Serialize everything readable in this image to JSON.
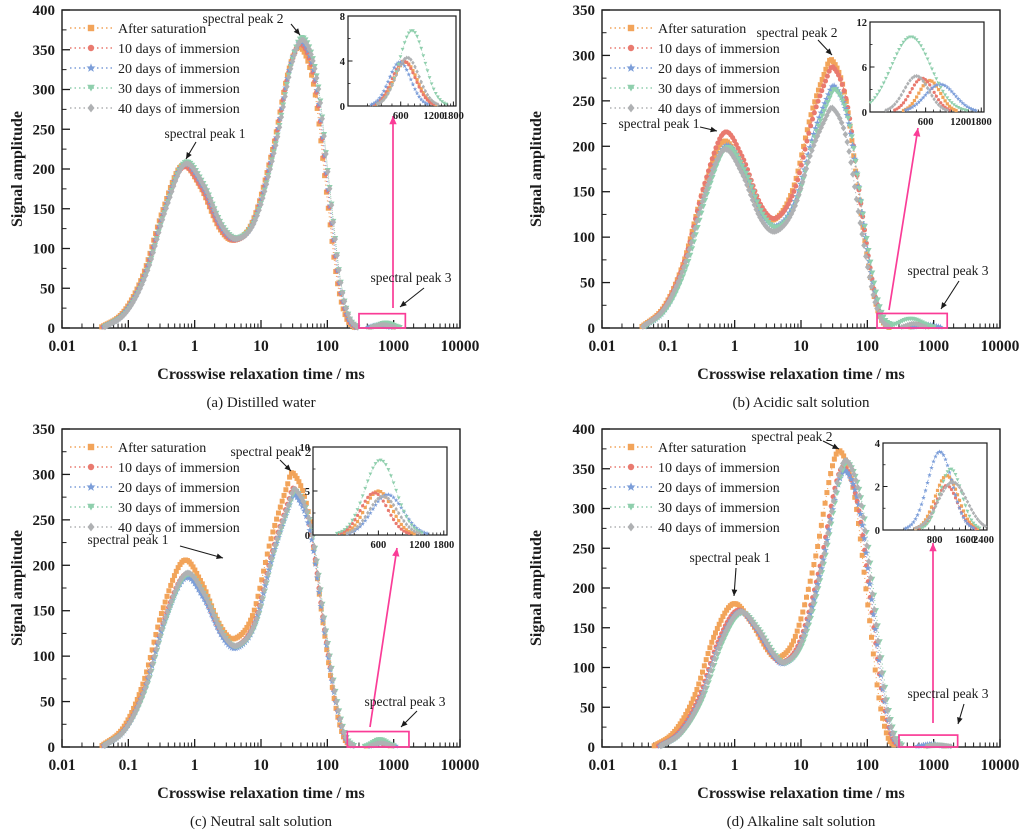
{
  "figure": {
    "background": "#ffffff",
    "axis_color": "#1b1b1b",
    "highlight_color": "#FA3C97",
    "series_colors": {
      "after_saturation": "#F2A45A",
      "d10": "#E97A6F",
      "d20": "#7C9ED9",
      "d30": "#8FCFAD",
      "d40": "#AFB1B3"
    }
  },
  "chart_data": [
    {
      "id": "a",
      "type": "scatter",
      "xscale": "log",
      "caption": "(a) Distilled water",
      "xlabel": "Crosswise relaxation time / ms",
      "ylabel": "Signal amplitude",
      "xlim": [
        0.01,
        10000
      ],
      "xtick_labels": [
        "0.01",
        "0.1",
        "1",
        "10",
        "100",
        "1000",
        "10000"
      ],
      "ylim": [
        0,
        400
      ],
      "ytick_step": 50,
      "base": {
        "p1_t": 0.68,
        "p1_amp": 206,
        "p2_t": 42,
        "p2_amp": 360,
        "anchors": [
          [
            0.04,
            0
          ],
          [
            0.09,
            20
          ],
          [
            0.18,
            68
          ],
          [
            0.35,
            148
          ],
          [
            0.68,
            206
          ],
          [
            1.3,
            180
          ],
          [
            2.5,
            128
          ],
          [
            4.2,
            112
          ],
          [
            8,
            136
          ],
          [
            16,
            228
          ],
          [
            28,
            330
          ],
          [
            42,
            360
          ],
          [
            68,
            308
          ],
          [
            105,
            172
          ],
          [
            150,
            62
          ],
          [
            205,
            14
          ],
          [
            280,
            0
          ]
        ]
      },
      "series": [
        {
          "name": "After saturation",
          "color": "#F2A45A",
          "marker": "square",
          "t_mult": 0.93,
          "p1_amp": 204,
          "p2_amp": 353,
          "peak3": {
            "amp": 3.9,
            "t": 660,
            "w": 0.15
          }
        },
        {
          "name": "10 days of immersion",
          "color": "#E97A6F",
          "marker": "circle",
          "t_mult": 0.97,
          "p1_amp": 202,
          "p2_amp": 357,
          "peak3": {
            "amp": 4.0,
            "t": 640,
            "w": 0.15
          }
        },
        {
          "name": "20 days of immersion",
          "color": "#7C9ED9",
          "marker": "star",
          "t_mult": 1.0,
          "p1_amp": 206,
          "p2_amp": 360,
          "peak3": {
            "amp": 3.9,
            "t": 590,
            "w": 0.14
          }
        },
        {
          "name": "30 days of immersion",
          "color": "#8FCFAD",
          "marker": "tridown",
          "t_mult": 1.04,
          "p1_amp": 208,
          "p2_amp": 365,
          "peak3": {
            "amp": 6.7,
            "t": 760,
            "w": 0.16
          }
        },
        {
          "name": "40 days of immersion",
          "color": "#AFB1B3",
          "marker": "diamond",
          "t_mult": 1.04,
          "p1_amp": 206,
          "p2_amp": 362,
          "peak3": {
            "amp": 4.3,
            "t": 690,
            "w": 0.15
          }
        }
      ],
      "inset": {
        "ylim": [
          0,
          8
        ],
        "yticks": [
          0,
          4,
          8
        ],
        "yminors": [
          2,
          6
        ],
        "xticks": [
          600,
          1200,
          1800
        ],
        "xminors": [
          300,
          400,
          500,
          700,
          800,
          900,
          1000,
          1100,
          1300,
          1400,
          1500,
          1600,
          1700
        ],
        "xlim": [
          200,
          1900
        ],
        "box": {
          "l": 348,
          "t": 16,
          "r": 456,
          "b": 106
        }
      },
      "highlight": {
        "t1": 300,
        "t2": 1500,
        "amp": 18
      },
      "pink_arrow": {
        "x1": 393,
        "y1": 308,
        "x2": 393,
        "y2": 116
      },
      "annotations": [
        {
          "text": "spectral peak 1",
          "x": 205,
          "y": 134,
          "ax1": 196,
          "ay1": 142,
          "ax2": 186,
          "ay2": 159
        },
        {
          "text": "spectral peak 2",
          "x": 243,
          "y": 19,
          "ax1": 291,
          "ay1": 24,
          "ax2": 300,
          "ay2": 35
        },
        {
          "text": "spectral peak 3",
          "x": 411,
          "y": 278,
          "ax1": 424,
          "ay1": 288,
          "ax2": 400,
          "ay2": 307
        }
      ]
    },
    {
      "id": "b",
      "type": "scatter",
      "xscale": "log",
      "caption": "(b) Acidic salt solution",
      "xlabel": "Crosswise relaxation time / ms",
      "ylabel": "Signal amplitude",
      "xlim": [
        0.01,
        10000
      ],
      "xtick_labels": [
        "0.01",
        "0.1",
        "1",
        "10",
        "100",
        "1000",
        "10000"
      ],
      "ylim": [
        0,
        350
      ],
      "ytick_step": 50,
      "base": {
        "p1_t": 0.7,
        "p1_amp": 200,
        "p2_t": 31,
        "p2_amp": 265,
        "anchors": [
          [
            0.04,
            0
          ],
          [
            0.09,
            22
          ],
          [
            0.18,
            70
          ],
          [
            0.35,
            146
          ],
          [
            0.7,
            200
          ],
          [
            1.3,
            176
          ],
          [
            2.5,
            126
          ],
          [
            4.2,
            112
          ],
          [
            8,
            140
          ],
          [
            15,
            212
          ],
          [
            24,
            252
          ],
          [
            31,
            265
          ],
          [
            50,
            228
          ],
          [
            80,
            128
          ],
          [
            120,
            48
          ],
          [
            165,
            11
          ],
          [
            230,
            0
          ]
        ]
      },
      "series": [
        {
          "name": "After saturation",
          "color": "#F2A45A",
          "marker": "square",
          "t_mult": 0.94,
          "p1_amp": 205,
          "p2_amp": 295,
          "peak3": {
            "amp": 4.2,
            "t": 650,
            "w": 0.13
          }
        },
        {
          "name": "10 days of immersion",
          "color": "#E97A6F",
          "marker": "circle",
          "t_mult": 0.99,
          "p1_amp": 215,
          "p2_amp": 287,
          "peak3": {
            "amp": 4.5,
            "t": 560,
            "w": 0.14
          }
        },
        {
          "name": "20 days of immersion",
          "color": "#7C9ED9",
          "marker": "star",
          "t_mult": 1.03,
          "p1_amp": 200,
          "p2_amp": 266,
          "peak3": {
            "amp": 3.7,
            "t": 800,
            "w": 0.18
          }
        },
        {
          "name": "30 days of immersion",
          "color": "#8FCFAD",
          "marker": "tridown",
          "t_mult": 1.07,
          "p1_amp": 198,
          "p2_amp": 262,
          "peak3": {
            "amp": 10,
            "t": 450,
            "w": 0.24
          }
        },
        {
          "name": "40 days of immersion",
          "color": "#AFB1B3",
          "marker": "diamond",
          "t_mult": 0.97,
          "p1_amp": 196,
          "p2_amp": 242,
          "peak3": {
            "amp": 4.8,
            "t": 500,
            "w": 0.15
          }
        }
      ],
      "inset": {
        "ylim": [
          0,
          12
        ],
        "yticks": [
          0,
          6,
          12
        ],
        "yminors": [
          3,
          9
        ],
        "xticks": [
          600,
          1200,
          1800
        ],
        "xminors": [
          300,
          400,
          500,
          700,
          800,
          900,
          1000,
          1100,
          1300,
          1400,
          1500,
          1600,
          1700
        ],
        "xlim": [
          200,
          1900
        ],
        "box": {
          "l": 358,
          "t": 22,
          "r": 472,
          "b": 112
        }
      },
      "highlight": {
        "t1": 140,
        "t2": 1600,
        "amp": 16
      },
      "pink_arrow": {
        "x1": 377,
        "y1": 310,
        "x2": 406,
        "y2": 128
      },
      "annotations": [
        {
          "text": "spectral peak 1",
          "x": 147,
          "y": 124,
          "ax1": 188,
          "ay1": 127,
          "ax2": 205,
          "ay2": 131
        },
        {
          "text": "spectral peak 2",
          "x": 285,
          "y": 33,
          "ax1": 306,
          "ay1": 40,
          "ax2": 320,
          "ay2": 55
        },
        {
          "text": "spectral peak 3",
          "x": 436,
          "y": 271,
          "ax1": 447,
          "ay1": 281,
          "ax2": 429,
          "ay2": 309
        }
      ]
    },
    {
      "id": "c",
      "type": "scatter",
      "xscale": "log",
      "caption": "(c) Neutral salt solution",
      "xlabel": "Crosswise relaxation time / ms",
      "ylabel": "Signal amplitude",
      "xlim": [
        0.01,
        10000
      ],
      "xtick_labels": [
        "0.01",
        "0.1",
        "1",
        "10",
        "100",
        "1000",
        "10000"
      ],
      "ylim": [
        0,
        350
      ],
      "ytick_step": 50,
      "base": {
        "p1_t": 0.72,
        "p1_amp": 190,
        "p2_t": 32,
        "p2_amp": 283,
        "anchors": [
          [
            0.04,
            0
          ],
          [
            0.09,
            20
          ],
          [
            0.18,
            66
          ],
          [
            0.35,
            140
          ],
          [
            0.72,
            190
          ],
          [
            1.35,
            168
          ],
          [
            2.6,
            124
          ],
          [
            4.2,
            111
          ],
          [
            8,
            136
          ],
          [
            15,
            214
          ],
          [
            26,
            268
          ],
          [
            32,
            283
          ],
          [
            55,
            242
          ],
          [
            90,
            132
          ],
          [
            135,
            50
          ],
          [
            185,
            11
          ],
          [
            255,
            0
          ]
        ]
      },
      "series": [
        {
          "name": "After saturation",
          "color": "#F2A45A",
          "marker": "square",
          "t_mult": 0.94,
          "p1_amp": 205,
          "p2_amp": 302,
          "peak3": {
            "amp": 5.0,
            "t": 600,
            "w": 0.14
          }
        },
        {
          "name": "10 days of immersion",
          "color": "#E97A6F",
          "marker": "circle",
          "t_mult": 0.99,
          "p1_amp": 190,
          "p2_amp": 285,
          "peak3": {
            "amp": 4.8,
            "t": 560,
            "w": 0.14
          }
        },
        {
          "name": "20 days of immersion",
          "color": "#7C9ED9",
          "marker": "star",
          "t_mult": 1.0,
          "p1_amp": 186,
          "p2_amp": 278,
          "peak3": {
            "amp": 4.6,
            "t": 700,
            "w": 0.16
          }
        },
        {
          "name": "30 days of immersion",
          "color": "#8FCFAD",
          "marker": "tridown",
          "t_mult": 1.05,
          "p1_amp": 189,
          "p2_amp": 282,
          "peak3": {
            "amp": 8.5,
            "t": 620,
            "w": 0.16
          }
        },
        {
          "name": "40 days of immersion",
          "color": "#AFB1B3",
          "marker": "diamond",
          "t_mult": 1.02,
          "p1_amp": 191,
          "p2_amp": 284,
          "peak3": {
            "amp": 4.4,
            "t": 650,
            "w": 0.15
          }
        }
      ],
      "inset": {
        "ylim": [
          0,
          10
        ],
        "yticks": [
          0,
          5,
          10
        ],
        "yminors": [
          2.5,
          7.5
        ],
        "xticks": [
          600,
          1200,
          1800
        ],
        "xminors": [
          300,
          400,
          500,
          700,
          800,
          900,
          1000,
          1100,
          1300,
          1400,
          1500,
          1600,
          1700
        ],
        "xlim": [
          200,
          1900
        ],
        "box": {
          "l": 313,
          "t": 28,
          "r": 447,
          "b": 116
        }
      },
      "highlight": {
        "t1": 200,
        "t2": 1700,
        "amp": 17
      },
      "pink_arrow": {
        "x1": 370,
        "y1": 308,
        "x2": 397,
        "y2": 129
      },
      "annotations": [
        {
          "text": "spectral peak 1",
          "x": 128,
          "y": 121,
          "ax1": 180,
          "ay1": 127,
          "ax2": 223,
          "ay2": 139
        },
        {
          "text": "spectral peak 2",
          "x": 271,
          "y": 33,
          "ax1": 280,
          "ay1": 41,
          "ax2": 291,
          "ay2": 52
        },
        {
          "text": "spectral peak 3",
          "x": 405,
          "y": 283,
          "ax1": 417,
          "ay1": 292,
          "ax2": 401,
          "ay2": 308
        }
      ]
    },
    {
      "id": "d",
      "type": "scatter",
      "xscale": "log",
      "caption": "(d) Alkaline salt solution",
      "xlabel": "Crosswise relaxation time / ms",
      "ylabel": "Signal amplitude",
      "xlim": [
        0.01,
        10000
      ],
      "xtick_labels": [
        "0.01",
        "0.1",
        "1",
        "10",
        "100",
        "1000",
        "10000"
      ],
      "ylim": [
        0,
        400
      ],
      "ytick_step": 50,
      "base": {
        "p1_t": 1.15,
        "p1_amp": 170,
        "p2_t": 48,
        "p2_amp": 355,
        "anchors": [
          [
            0.07,
            0
          ],
          [
            0.15,
            18
          ],
          [
            0.3,
            60
          ],
          [
            0.6,
            132
          ],
          [
            1.15,
            170
          ],
          [
            2.1,
            150
          ],
          [
            3.8,
            116
          ],
          [
            5.5,
            106
          ],
          [
            10,
            132
          ],
          [
            20,
            226
          ],
          [
            35,
            332
          ],
          [
            48,
            355
          ],
          [
            78,
            302
          ],
          [
            125,
            168
          ],
          [
            180,
            62
          ],
          [
            245,
            13
          ],
          [
            330,
            0
          ]
        ]
      },
      "series": [
        {
          "name": "After saturation",
          "color": "#F2A45A",
          "marker": "square",
          "t_mult": 0.82,
          "p1_amp": 180,
          "p2_amp": 372,
          "peak3": {
            "amp": 2.5,
            "t": 1050,
            "w": 0.16
          }
        },
        {
          "name": "10 days of immersion",
          "color": "#E97A6F",
          "marker": "circle",
          "t_mult": 0.95,
          "p1_amp": 172,
          "p2_amp": 352,
          "peak3": {
            "amp": 2.05,
            "t": 1050,
            "w": 0.15
          }
        },
        {
          "name": "20 days of immersion",
          "color": "#7C9ED9",
          "marker": "star",
          "t_mult": 1.0,
          "p1_amp": 170,
          "p2_amp": 347,
          "peak3": {
            "amp": 3.6,
            "t": 900,
            "w": 0.17
          }
        },
        {
          "name": "30 days of immersion",
          "color": "#8FCFAD",
          "marker": "tridown",
          "t_mult": 1.09,
          "p1_amp": 168,
          "p2_amp": 357,
          "peak3": {
            "amp": 2.8,
            "t": 1150,
            "w": 0.15
          }
        },
        {
          "name": "40 days of immersion",
          "color": "#AFB1B3",
          "marker": "diamond",
          "t_mult": 1.03,
          "p1_amp": 170,
          "p2_amp": 360,
          "peak3": {
            "amp": 2.2,
            "t": 1200,
            "w": 0.2
          }
        }
      ],
      "inset": {
        "ylim": [
          0,
          4
        ],
        "yticks": [
          0,
          2,
          4
        ],
        "yminors": [
          1,
          3
        ],
        "xticks": [
          800,
          1600,
          2400
        ],
        "xminors": [
          400,
          500,
          600,
          700,
          1000,
          1200,
          1400,
          1800,
          2000,
          2200
        ],
        "xlim": [
          250,
          2600
        ],
        "box": {
          "l": 371,
          "t": 24,
          "r": 475,
          "b": 111
        }
      },
      "highlight": {
        "t1": 300,
        "t2": 2300,
        "amp": 15
      },
      "pink_arrow": {
        "x1": 421,
        "y1": 304,
        "x2": 421,
        "y2": 124
      },
      "annotations": [
        {
          "text": "spectral peak 1",
          "x": 218,
          "y": 139,
          "ax1": 224,
          "ay1": 149,
          "ax2": 222,
          "ay2": 177
        },
        {
          "text": "spectral peak 2",
          "x": 280,
          "y": 18,
          "ax1": 311,
          "ay1": 22,
          "ax2": 327,
          "ay2": 30
        },
        {
          "text": "spectral peak 3",
          "x": 436,
          "y": 275,
          "ax1": 452,
          "ay1": 285,
          "ax2": 446,
          "ay2": 305
        }
      ]
    }
  ]
}
